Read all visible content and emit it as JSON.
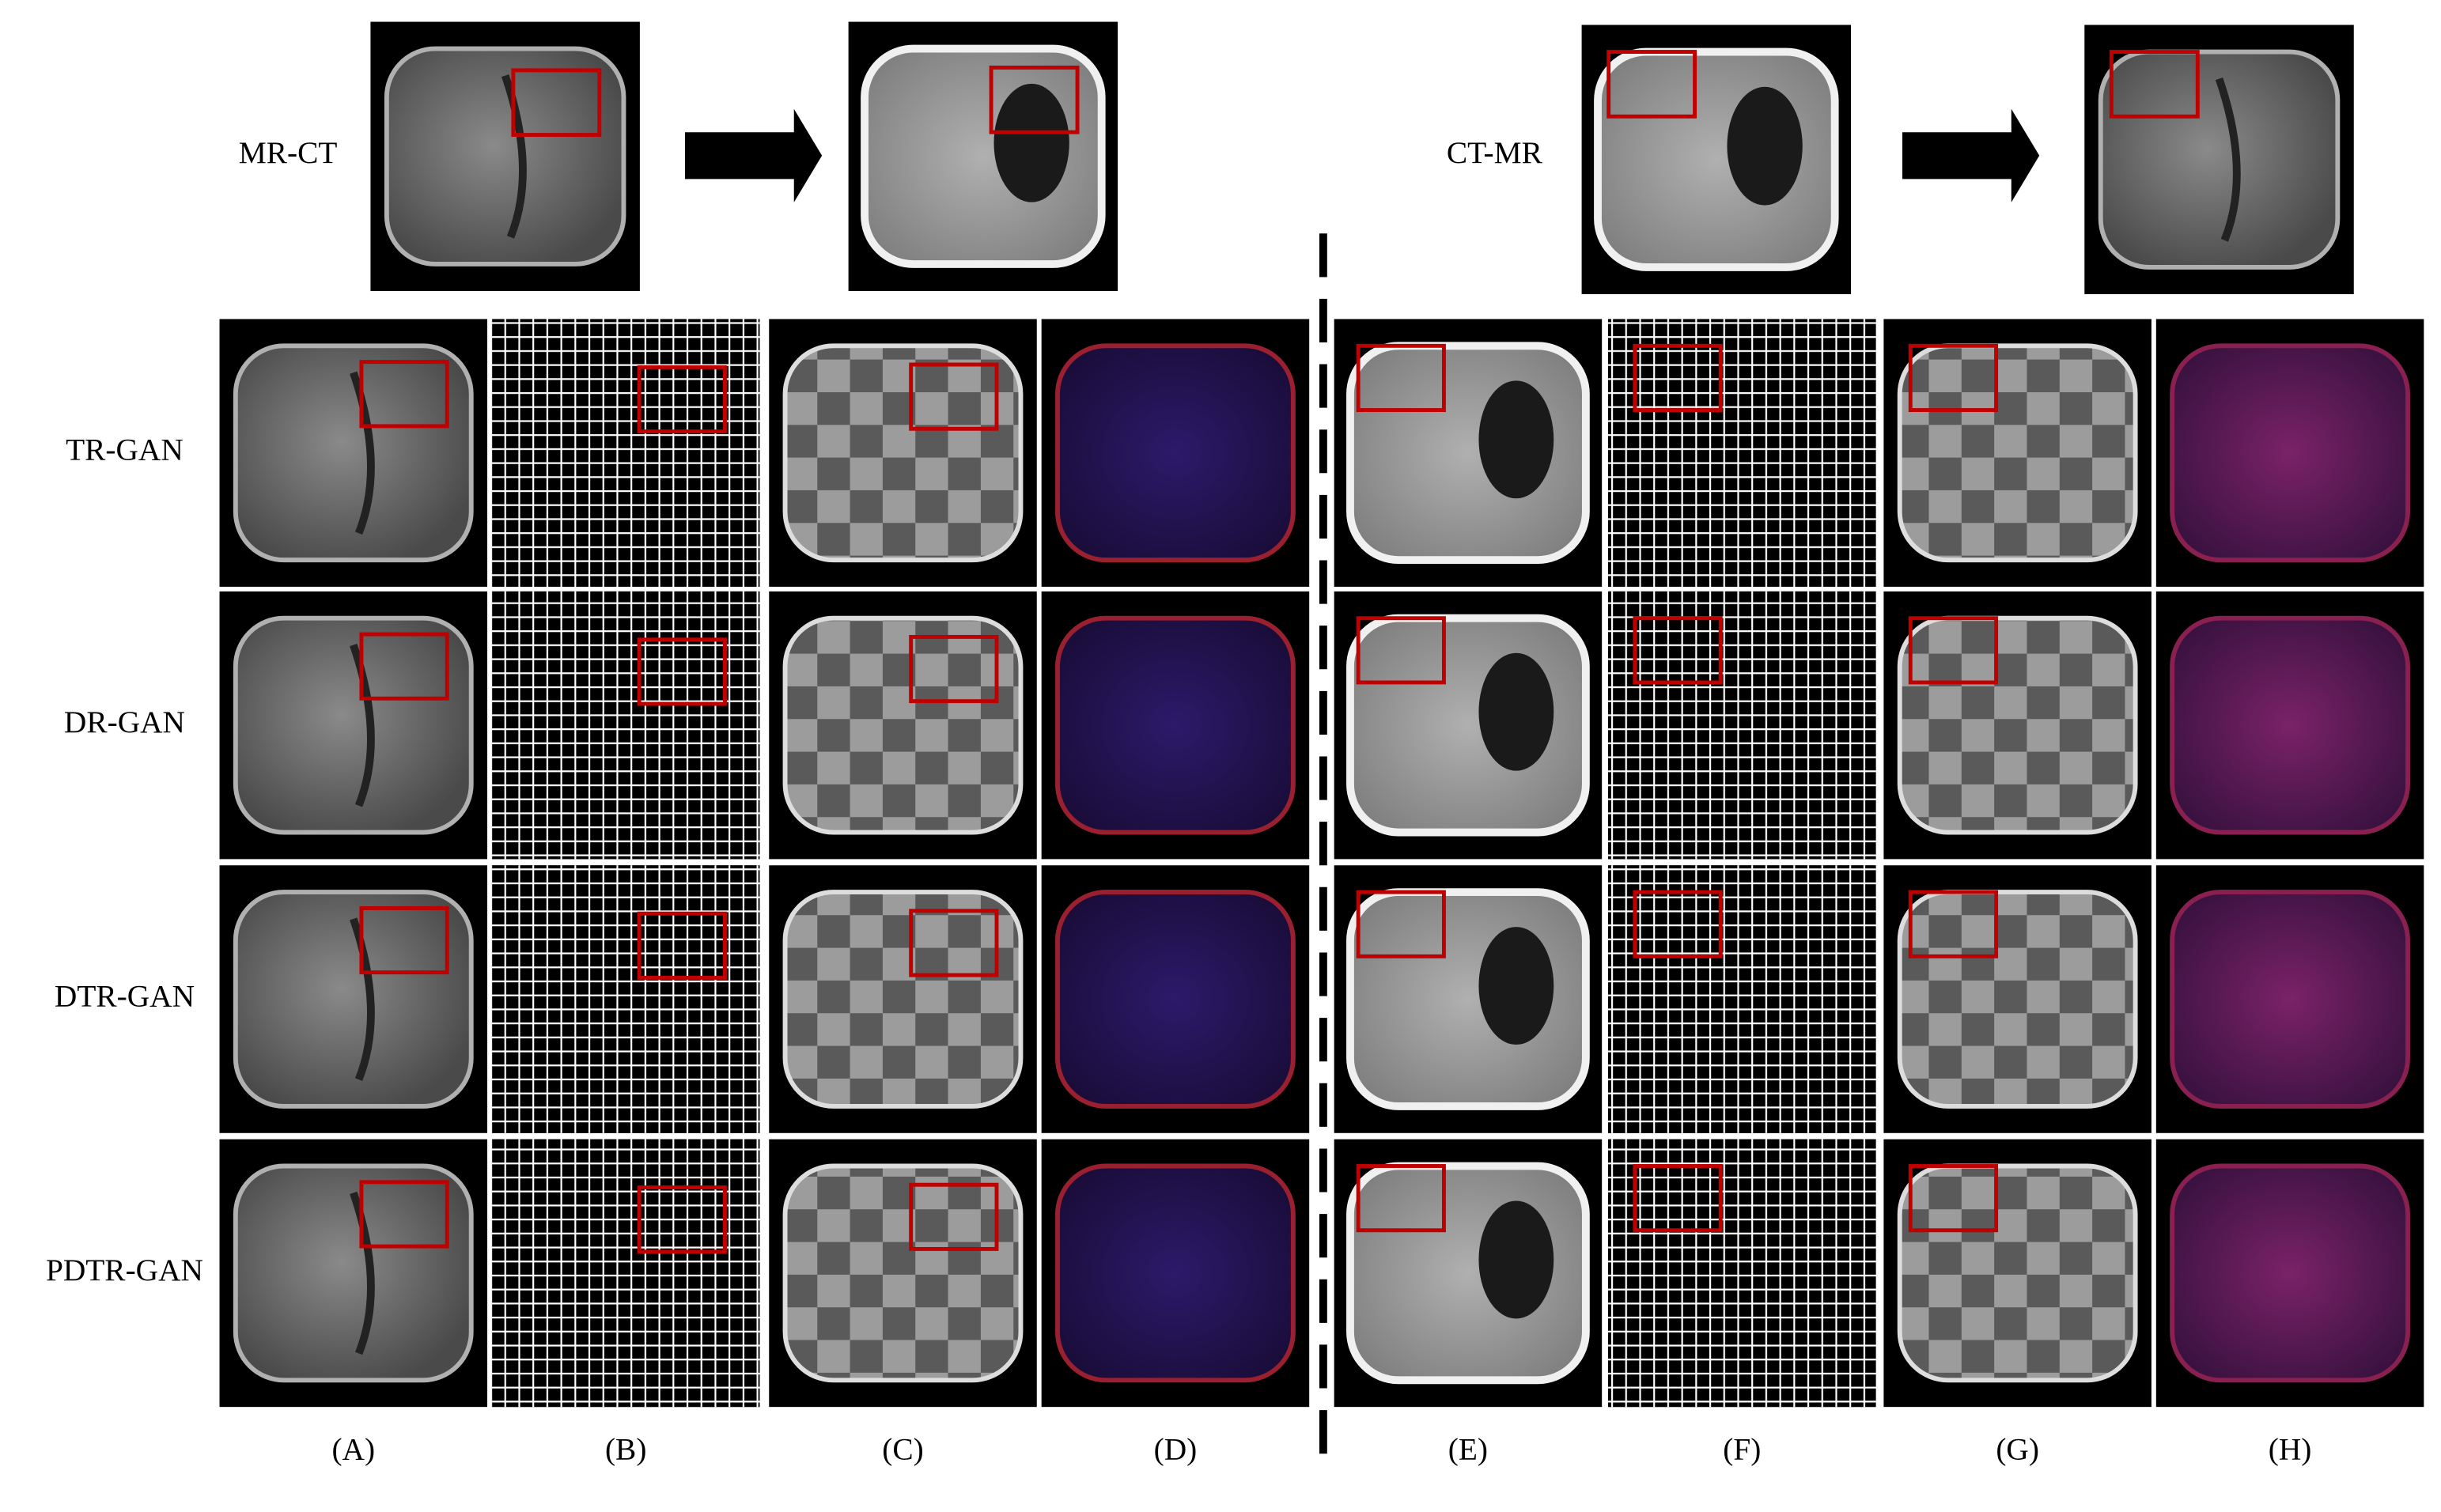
{
  "top": {
    "left_label": "MR-CT",
    "right_label": "CT-MR"
  },
  "rows": [
    "TR-GAN",
    "DR-GAN",
    "DTR-GAN",
    "PDTR-GAN"
  ],
  "columns": [
    "(A)",
    "(B)",
    "(C)",
    "(D)",
    "(E)",
    "(F)",
    "(G)",
    "(H)"
  ]
}
